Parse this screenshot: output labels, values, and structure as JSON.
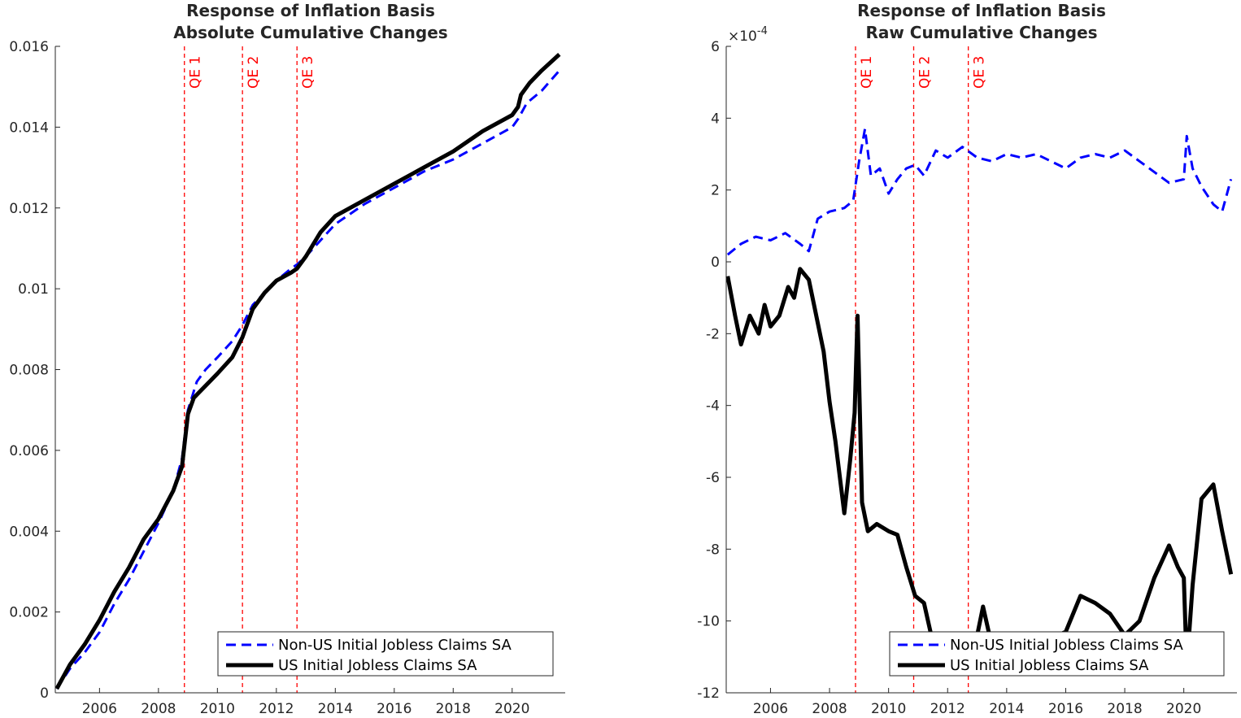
{
  "colors": {
    "non_us": "#0000ff",
    "us": "#000000",
    "qe": "#ff0000",
    "axis": "#262626"
  },
  "chart_data": [
    {
      "type": "line",
      "title": "Response of Inflation Basis",
      "subtitle": "Absolute Cumulative Changes",
      "xlabel": "",
      "ylabel": "",
      "xlim": [
        2004.5,
        2021.8
      ],
      "ylim": [
        0,
        0.016
      ],
      "x_ticks": [
        2006,
        2008,
        2010,
        2012,
        2014,
        2016,
        2018,
        2020
      ],
      "y_ticks": [
        0,
        0.002,
        0.004,
        0.006,
        0.008,
        0.01,
        0.012,
        0.014,
        0.016
      ],
      "y_tick_labels": [
        "0",
        "0.002",
        "0.004",
        "0.006",
        "0.008",
        "0.01",
        "0.012",
        "0.014",
        "0.016"
      ],
      "y_multiplier": "",
      "grid": false,
      "legend_position": "bottom-right",
      "annotations": [
        {
          "label": "QE 1",
          "x": 2008.88
        },
        {
          "label": "QE 2",
          "x": 2010.85
        },
        {
          "label": "QE 3",
          "x": 2012.7
        }
      ],
      "series": [
        {
          "name": "Non-US Initial Jobless Claims SA",
          "style": "dashed",
          "x": [
            2004.55,
            2005.0,
            2005.5,
            2006.0,
            2006.5,
            2007.0,
            2007.5,
            2008.0,
            2008.5,
            2008.8,
            2009.0,
            2009.3,
            2009.6,
            2010.0,
            2010.5,
            2010.85,
            2011.2,
            2011.6,
            2012.0,
            2012.5,
            2012.7,
            2013.0,
            2013.5,
            2014.0,
            2015.0,
            2016.0,
            2017.0,
            2018.0,
            2019.0,
            2020.0,
            2020.2,
            2020.5,
            2021.0,
            2021.6
          ],
          "y": [
            0.0001,
            0.0006,
            0.001,
            0.0015,
            0.0022,
            0.0028,
            0.0035,
            0.0042,
            0.005,
            0.0058,
            0.007,
            0.0077,
            0.008,
            0.0083,
            0.0087,
            0.0091,
            0.0096,
            0.0099,
            0.0102,
            0.0105,
            0.0106,
            0.0108,
            0.0112,
            0.0116,
            0.0121,
            0.0125,
            0.0129,
            0.0132,
            0.0136,
            0.014,
            0.0142,
            0.0146,
            0.0149,
            0.0154
          ]
        },
        {
          "name": "US Initial Jobless Claims SA",
          "style": "solid",
          "x": [
            2004.55,
            2005.0,
            2005.5,
            2006.0,
            2006.5,
            2007.0,
            2007.5,
            2008.0,
            2008.5,
            2008.8,
            2009.0,
            2009.2,
            2009.6,
            2010.0,
            2010.5,
            2010.85,
            2011.2,
            2011.6,
            2012.0,
            2012.5,
            2012.7,
            2013.0,
            2013.5,
            2014.0,
            2015.0,
            2016.0,
            2017.0,
            2018.0,
            2019.0,
            2020.0,
            2020.2,
            2020.3,
            2020.6,
            2021.0,
            2021.6
          ],
          "y": [
            0.0001,
            0.0007,
            0.0012,
            0.0018,
            0.0025,
            0.0031,
            0.0038,
            0.0043,
            0.005,
            0.0056,
            0.0069,
            0.0073,
            0.0076,
            0.0079,
            0.0083,
            0.0088,
            0.0095,
            0.0099,
            0.0102,
            0.0104,
            0.0105,
            0.0108,
            0.0114,
            0.0118,
            0.0122,
            0.0126,
            0.013,
            0.0134,
            0.0139,
            0.0143,
            0.0145,
            0.0148,
            0.0151,
            0.0154,
            0.0158
          ]
        }
      ]
    },
    {
      "type": "line",
      "title": "Response of Inflation Basis",
      "subtitle": "Raw Cumulative Changes",
      "xlabel": "",
      "ylabel": "",
      "xlim": [
        2004.5,
        2021.8
      ],
      "ylim": [
        -12,
        6
      ],
      "x_ticks": [
        2006,
        2008,
        2010,
        2012,
        2014,
        2016,
        2018,
        2020
      ],
      "y_ticks": [
        -12,
        -10,
        -8,
        -6,
        -4,
        -2,
        0,
        2,
        4,
        6
      ],
      "y_tick_labels": [
        "-12",
        "-10",
        "-8",
        "-6",
        "-4",
        "-2",
        "0",
        "2",
        "4",
        "6"
      ],
      "y_multiplier": "×10",
      "y_multiplier_exp": "-4",
      "grid": false,
      "legend_position": "bottom-right",
      "annotations": [
        {
          "label": "QE 1",
          "x": 2008.88
        },
        {
          "label": "QE 2",
          "x": 2010.85
        },
        {
          "label": "QE 3",
          "x": 2012.7
        }
      ],
      "series": [
        {
          "name": "Non-US Initial Jobless Claims SA",
          "style": "dashed",
          "x": [
            2004.55,
            2005.0,
            2005.5,
            2006.0,
            2006.5,
            2007.0,
            2007.3,
            2007.6,
            2008.0,
            2008.5,
            2008.8,
            2009.0,
            2009.2,
            2009.4,
            2009.7,
            2010.0,
            2010.3,
            2010.6,
            2010.9,
            2011.2,
            2011.6,
            2012.0,
            2012.5,
            2013.0,
            2013.5,
            2014.0,
            2014.5,
            2015.0,
            2015.5,
            2016.0,
            2016.5,
            2017.0,
            2017.5,
            2018.0,
            2018.5,
            2019.0,
            2019.5,
            2020.0,
            2020.1,
            2020.3,
            2020.6,
            2021.0,
            2021.3,
            2021.6
          ],
          "y": [
            0.2,
            0.5,
            0.7,
            0.6,
            0.8,
            0.5,
            0.3,
            1.2,
            1.4,
            1.5,
            1.7,
            2.8,
            3.7,
            2.4,
            2.6,
            1.9,
            2.3,
            2.6,
            2.7,
            2.4,
            3.1,
            2.9,
            3.2,
            2.9,
            2.8,
            3.0,
            2.9,
            3.0,
            2.8,
            2.6,
            2.9,
            3.0,
            2.9,
            3.1,
            2.8,
            2.5,
            2.2,
            2.3,
            3.5,
            2.6,
            2.1,
            1.6,
            1.4,
            2.3
          ]
        },
        {
          "name": "US Initial Jobless Claims SA",
          "style": "solid",
          "x": [
            2004.55,
            2004.8,
            2005.0,
            2005.3,
            2005.6,
            2005.8,
            2006.0,
            2006.3,
            2006.6,
            2006.8,
            2007.0,
            2007.3,
            2007.5,
            2007.8,
            2008.0,
            2008.2,
            2008.5,
            2008.7,
            2008.85,
            2008.95,
            2009.1,
            2009.3,
            2009.6,
            2010.0,
            2010.3,
            2010.6,
            2010.9,
            2011.2,
            2011.5,
            2011.8,
            2012.0,
            2012.5,
            2012.9,
            2013.0,
            2013.2,
            2013.5,
            2014.0,
            2014.5,
            2015.0,
            2015.5,
            2016.0,
            2016.5,
            2017.0,
            2017.5,
            2018.0,
            2018.5,
            2019.0,
            2019.5,
            2019.8,
            2020.0,
            2020.1,
            2020.3,
            2020.6,
            2021.0,
            2021.3,
            2021.6
          ],
          "y": [
            -0.4,
            -1.5,
            -2.3,
            -1.5,
            -2.0,
            -1.2,
            -1.8,
            -1.5,
            -0.7,
            -1.0,
            -0.2,
            -0.5,
            -1.3,
            -2.5,
            -3.9,
            -5.0,
            -7.0,
            -5.5,
            -4.2,
            -1.5,
            -6.7,
            -7.5,
            -7.3,
            -7.5,
            -7.6,
            -8.5,
            -9.3,
            -9.5,
            -10.6,
            -11.0,
            -10.8,
            -10.8,
            -10.6,
            -10.4,
            -9.6,
            -10.7,
            -10.6,
            -10.5,
            -10.6,
            -10.5,
            -10.3,
            -9.3,
            -9.5,
            -9.8,
            -10.4,
            -10.0,
            -8.8,
            -7.9,
            -8.5,
            -8.8,
            -11.3,
            -9.0,
            -6.6,
            -6.2,
            -7.5,
            -8.7
          ]
        }
      ]
    }
  ]
}
